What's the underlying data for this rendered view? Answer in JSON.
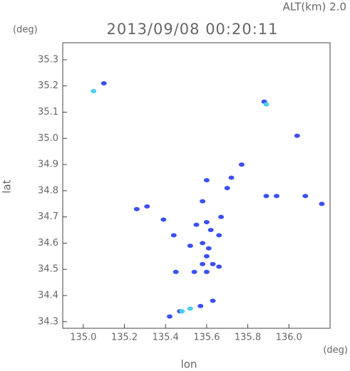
{
  "chart_data": {
    "type": "scatter",
    "title": "2013/09/08 00:20:11",
    "subtitle": "ALT(km) 2.0",
    "y_unit": "(deg)",
    "x_unit": "(deg)",
    "x_label": "lon",
    "y_label": "lat",
    "xlim": [
      134.9,
      136.2
    ],
    "ylim": [
      34.275,
      35.365
    ],
    "xticks": [
      {
        "value": 135.0,
        "label": "135.0"
      },
      {
        "value": 135.2,
        "label": "135.2"
      },
      {
        "value": 135.4,
        "label": "135.4"
      },
      {
        "value": 135.6,
        "label": "135.6"
      },
      {
        "value": 135.8,
        "label": "135.8"
      },
      {
        "value": 136.0,
        "label": "136.0"
      }
    ],
    "yticks": [
      34.3,
      34.4,
      34.5,
      34.6,
      34.7,
      34.8,
      34.9,
      {
        "value": 35.0,
        "label": "35.0"
      },
      35.1,
      35.2,
      35.3
    ],
    "series": [
      {
        "color": "#3b4ff0",
        "x": [
          135.1,
          135.88,
          136.04,
          135.77,
          135.72,
          135.6,
          135.7,
          135.89,
          135.94,
          136.08,
          136.16,
          135.58,
          135.26,
          135.31,
          135.39,
          135.44,
          135.67,
          135.6,
          135.55,
          135.62,
          135.66,
          135.58,
          135.52,
          135.61,
          135.6,
          135.58,
          135.63,
          135.66,
          135.54,
          135.6,
          135.45,
          135.42,
          135.47,
          135.57,
          135.63
        ],
        "y": [
          35.21,
          35.14,
          35.01,
          34.9,
          34.85,
          34.84,
          34.81,
          34.78,
          34.78,
          34.78,
          34.75,
          34.76,
          34.73,
          34.74,
          34.69,
          34.63,
          34.7,
          34.68,
          34.67,
          34.65,
          34.63,
          34.6,
          34.59,
          34.58,
          34.55,
          34.52,
          34.52,
          34.51,
          34.49,
          34.49,
          34.49,
          34.32,
          34.34,
          34.36,
          34.38
        ]
      },
      {
        "color": "#48d0ee",
        "x": [
          135.05,
          135.89,
          135.52,
          135.48
        ],
        "y": [
          35.18,
          35.13,
          34.35,
          34.34
        ]
      }
    ]
  }
}
